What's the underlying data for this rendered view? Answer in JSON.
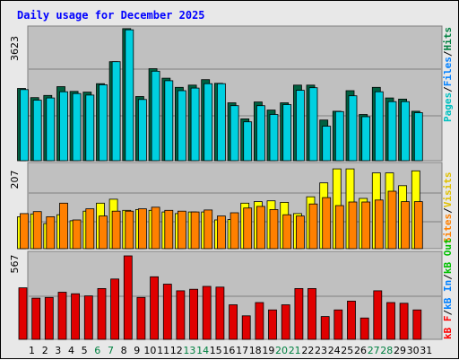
{
  "title": "Daily usage for December 2025",
  "colors": {
    "background": "#e8e8e8",
    "panel": "#c0c0c0",
    "title": "#0000ff",
    "pages": "#00c0c0",
    "files": "#0080ff",
    "hits": "#008040",
    "visits": "#ffff00",
    "sites": "#ff8000",
    "kb_in": "#0080ff",
    "kb_out": "#00c000",
    "kb_f": "#ff0000",
    "day_weekday": "#000000",
    "day_weekend": "#008040",
    "grid": "#808080"
  },
  "legend": {
    "top": [
      "Pages",
      "Files",
      "Hits"
    ],
    "middle": [
      "Visits",
      "Sites"
    ],
    "bottom": [
      "kB F",
      "kB In",
      "kB Out"
    ],
    "separator": "/"
  },
  "chart_data": [
    {
      "type": "bar",
      "panel": "hits_files_pages",
      "ymax_label": "3623",
      "ylim": [
        0,
        3623
      ],
      "categories": [
        "1",
        "2",
        "3",
        "4",
        "5",
        "6",
        "7",
        "8",
        "9",
        "10",
        "11",
        "12",
        "13",
        "14",
        "15",
        "16",
        "17",
        "18",
        "19",
        "20",
        "21",
        "22",
        "23",
        "24",
        "25",
        "26",
        "27",
        "28",
        "29",
        "30",
        "31"
      ],
      "weekend_days": [
        "6",
        "7",
        "13",
        "14",
        "20",
        "21",
        "27",
        "28"
      ],
      "series": [
        {
          "name": "Hits",
          "values": [
            1970,
            1720,
            1780,
            2020,
            1890,
            1870,
            2100,
            2700,
            3600,
            1750,
            2510,
            2250,
            2000,
            2060,
            2210,
            2110,
            1580,
            1140,
            1600,
            1380,
            1580,
            2060,
            2060,
            1110,
            1350,
            1910,
            1260,
            2000,
            1710,
            1680,
            1350
          ]
        },
        {
          "name": "Pages",
          "values": [
            1940,
            1650,
            1710,
            1880,
            1830,
            1790,
            2070,
            2700,
            3570,
            1670,
            2440,
            2180,
            1910,
            1980,
            2100,
            2100,
            1500,
            1060,
            1500,
            1260,
            1530,
            1920,
            1990,
            940,
            1340,
            1770,
            1200,
            1880,
            1610,
            1610,
            1310
          ]
        }
      ]
    },
    {
      "type": "bar",
      "panel": "visits_sites",
      "ymax_label": "207",
      "ylim": [
        0,
        207
      ],
      "categories": [
        "1",
        "2",
        "3",
        "4",
        "5",
        "6",
        "7",
        "8",
        "9",
        "10",
        "11",
        "12",
        "13",
        "14",
        "15",
        "16",
        "17",
        "18",
        "19",
        "20",
        "21",
        "22",
        "23",
        "24",
        "25",
        "26",
        "27",
        "28",
        "29",
        "30",
        "31"
      ],
      "series": [
        {
          "name": "Visits",
          "values": [
            80,
            87,
            63,
            85,
            70,
            94,
            114,
            124,
            96,
            98,
            96,
            92,
            88,
            92,
            92,
            72,
            73,
            114,
            118,
            120,
            116,
            88,
            130,
            165,
            200,
            200,
            126,
            190,
            190,
            158,
            195
          ]
        },
        {
          "name": "Sites",
          "values": [
            88,
            93,
            80,
            114,
            72,
            100,
            82,
            94,
            94,
            100,
            104,
            96,
            94,
            92,
            97,
            82,
            90,
            102,
            106,
            98,
            85,
            82,
            112,
            128,
            108,
            117,
            117,
            122,
            144,
            118,
            118
          ]
        }
      ]
    },
    {
      "type": "bar",
      "panel": "kb_f",
      "ymax_label": "567",
      "ylim": [
        0,
        567
      ],
      "categories": [
        "1",
        "2",
        "3",
        "4",
        "5",
        "6",
        "7",
        "8",
        "9",
        "10",
        "11",
        "12",
        "13",
        "14",
        "15",
        "16",
        "17",
        "18",
        "19",
        "20",
        "21",
        "22",
        "23",
        "24",
        "25",
        "26",
        "27",
        "28",
        "29",
        "30",
        "31"
      ],
      "series": [
        {
          "name": "kB F",
          "values": [
            350,
            280,
            285,
            320,
            310,
            295,
            345,
            410,
            567,
            285,
            425,
            375,
            330,
            340,
            360,
            355,
            235,
            160,
            250,
            200,
            235,
            345,
            345,
            155,
            200,
            260,
            145,
            330,
            250,
            245,
            200
          ]
        }
      ]
    }
  ]
}
